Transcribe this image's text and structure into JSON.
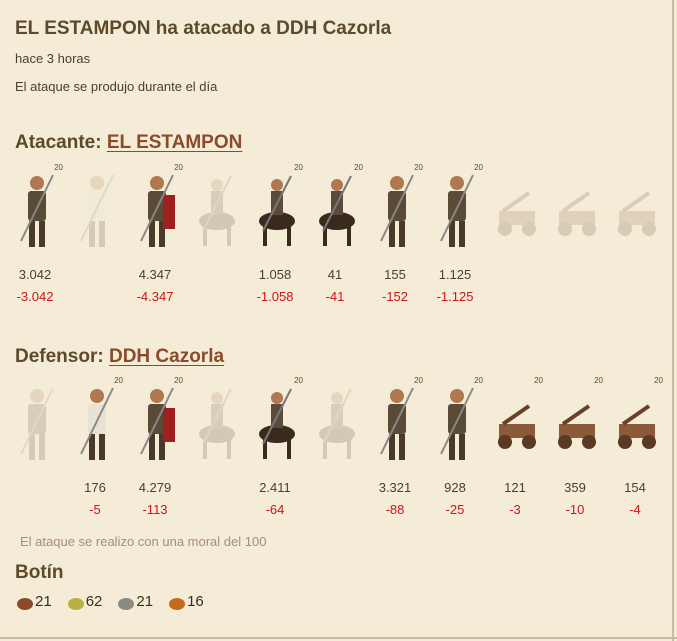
{
  "report": {
    "title": "EL ESTAMPON ha atacado a DDH Cazorla",
    "time": "hace 3 horas",
    "daytime": "El ataque se produjo durante el día"
  },
  "attacker": {
    "label": "Atacante:",
    "name": "EL ESTAMPON",
    "units": [
      {
        "icon": "axe-warrior-icon",
        "level": "20",
        "count": "3.042",
        "loss": "-3.042"
      },
      {
        "icon": "scout-icon",
        "level": "",
        "count": "",
        "loss": ""
      },
      {
        "icon": "legionary-icon",
        "level": "20",
        "count": "4.347",
        "loss": "-4.347"
      },
      {
        "icon": "knight-icon",
        "level": "",
        "count": "",
        "loss": ""
      },
      {
        "icon": "light-cavalry-icon",
        "level": "20",
        "count": "1.058",
        "loss": "-1.058"
      },
      {
        "icon": "heavy-cavalry-icon",
        "level": "20",
        "count": "41",
        "loss": "-41"
      },
      {
        "icon": "thrower-icon",
        "level": "20",
        "count": "155",
        "loss": "-152"
      },
      {
        "icon": "spearman-icon",
        "level": "20",
        "count": "1.125",
        "loss": "-1.125"
      },
      {
        "icon": "catapult-icon",
        "level": "",
        "count": "",
        "loss": ""
      },
      {
        "icon": "ballista-icon",
        "level": "",
        "count": "",
        "loss": ""
      },
      {
        "icon": "wagon-icon",
        "level": "",
        "count": "",
        "loss": ""
      }
    ]
  },
  "defender": {
    "label": "Defensor:",
    "name": "DDH Cazorla",
    "units": [
      {
        "icon": "axe-warrior-icon",
        "level": "",
        "count": "",
        "loss": ""
      },
      {
        "icon": "scout-icon",
        "level": "20",
        "count": "176",
        "loss": "-5"
      },
      {
        "icon": "legionary-icon",
        "level": "20",
        "count": "4.279",
        "loss": "-113"
      },
      {
        "icon": "knight-icon",
        "level": "",
        "count": "",
        "loss": ""
      },
      {
        "icon": "light-cavalry-icon",
        "level": "20",
        "count": "2.411",
        "loss": "-64"
      },
      {
        "icon": "heavy-cavalry-icon",
        "level": "",
        "count": "",
        "loss": ""
      },
      {
        "icon": "thrower-icon",
        "level": "20",
        "count": "3.321",
        "loss": "-88"
      },
      {
        "icon": "spearman-icon",
        "level": "20",
        "count": "928",
        "loss": "-25"
      },
      {
        "icon": "catapult-icon",
        "level": "20",
        "count": "121",
        "loss": "-3"
      },
      {
        "icon": "ballista-icon",
        "level": "20",
        "count": "359",
        "loss": "-10"
      },
      {
        "icon": "wagon-icon",
        "level": "20",
        "count": "154",
        "loss": "-4"
      }
    ]
  },
  "moral": "El ataque se realizo con una moral del 100",
  "loot": {
    "title": "Botín",
    "items": [
      {
        "icon": "wood-icon",
        "value": "21",
        "color": "#8a4a2a"
      },
      {
        "icon": "food-icon",
        "value": "62",
        "color": "#b8b040"
      },
      {
        "icon": "stone-icon",
        "value": "21",
        "color": "#8a8a80"
      },
      {
        "icon": "ore-icon",
        "value": "16",
        "color": "#c66a20"
      }
    ]
  }
}
